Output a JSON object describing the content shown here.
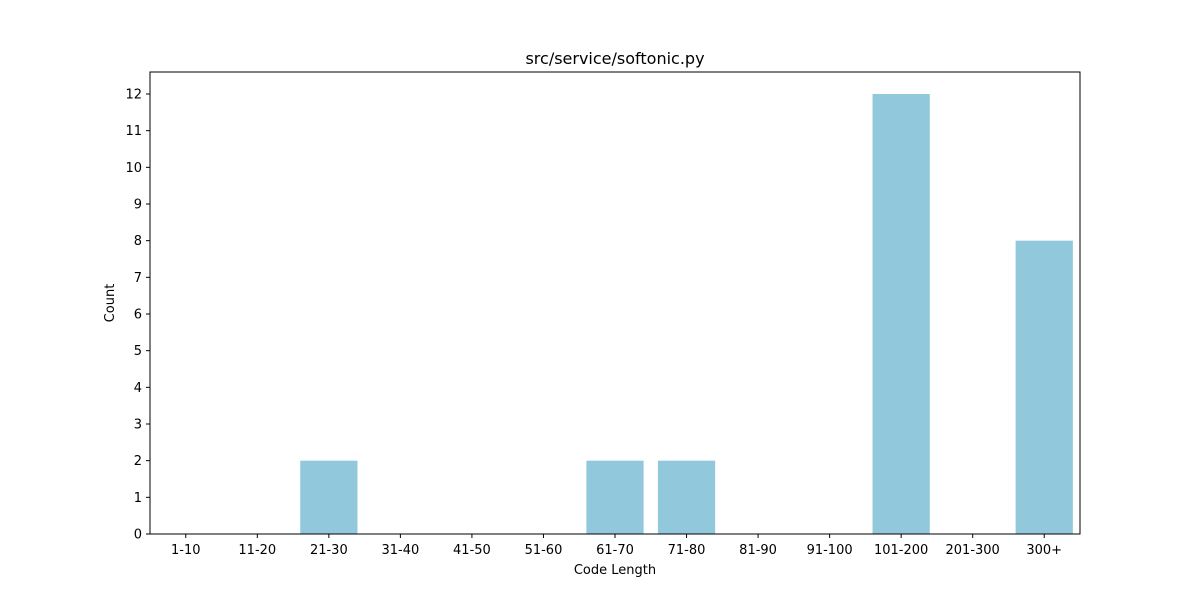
{
  "chart_data": {
    "type": "bar",
    "title": "src/service/softonic.py",
    "xlabel": "Code Length",
    "ylabel": "Count",
    "categories": [
      "1-10",
      "11-20",
      "21-30",
      "31-40",
      "41-50",
      "51-60",
      "61-70",
      "71-80",
      "81-90",
      "91-100",
      "101-200",
      "201-300",
      "300+"
    ],
    "values": [
      0,
      0,
      2,
      0,
      0,
      0,
      2,
      2,
      0,
      0,
      12,
      0,
      8
    ],
    "ylim": [
      0,
      12.6
    ],
    "yticks": [
      0,
      1,
      2,
      3,
      4,
      5,
      6,
      7,
      8,
      9,
      10,
      11,
      12
    ],
    "grid": false,
    "legend": "none",
    "bar_color": "#92c8dc"
  }
}
